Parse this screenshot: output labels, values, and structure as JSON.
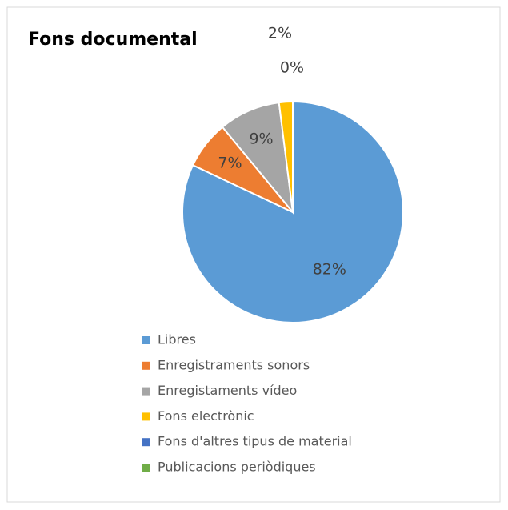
{
  "chart_data": {
    "type": "pie",
    "title": "Fons documental",
    "categories": [
      "Libres",
      "Enregistraments sonors",
      "Enregistaments vídeo",
      "Fons electrònic",
      "Fons d'altres tipus de material",
      "Publicacions periòdiques"
    ],
    "values": [
      82,
      7,
      9,
      2,
      0,
      0
    ],
    "value_labels": [
      "82%",
      "7%",
      "9%",
      "2%",
      "0%",
      null
    ],
    "colors": [
      "#5b9bd5",
      "#ed7d31",
      "#a5a5a5",
      "#ffc000",
      "#4472c4",
      "#70ad47"
    ],
    "legend": "bottom"
  }
}
